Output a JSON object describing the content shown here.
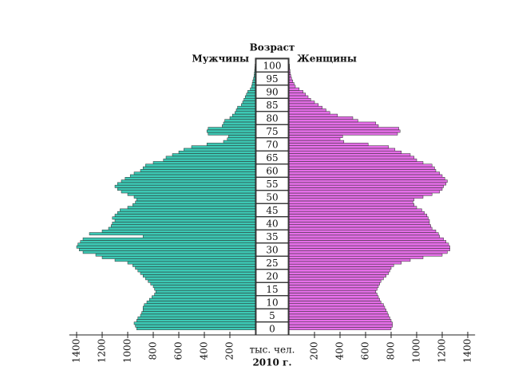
{
  "chart_data": {
    "type": "pyramid",
    "y_label": "Возраст",
    "x_label": "тыс. чел.",
    "annotation": "2010 г.",
    "categories": [
      0,
      null,
      null,
      null,
      null,
      5,
      null,
      null,
      null,
      null,
      10,
      null,
      null,
      null,
      null,
      15,
      null,
      null,
      null,
      null,
      20,
      null,
      null,
      null,
      null,
      25,
      null,
      null,
      null,
      null,
      30,
      null,
      null,
      null,
      null,
      35,
      null,
      null,
      null,
      null,
      40,
      null,
      null,
      null,
      null,
      45,
      null,
      null,
      null,
      null,
      50,
      null,
      null,
      null,
      null,
      55,
      null,
      null,
      null,
      null,
      60,
      null,
      null,
      null,
      null,
      65,
      null,
      null,
      null,
      null,
      70,
      null,
      null,
      null,
      null,
      75,
      null,
      null,
      null,
      null,
      80,
      null,
      null,
      null,
      null,
      85,
      null,
      null,
      null,
      null,
      90,
      null,
      null,
      null,
      null,
      95,
      null,
      null,
      null,
      null,
      100
    ],
    "series": [
      {
        "name": "Мужчины",
        "color": "#3cc8b4",
        "values": [
          930,
          940,
          950,
          930,
          920,
          900,
          890,
          880,
          880,
          870,
          850,
          830,
          810,
          790,
          780,
          790,
          800,
          820,
          840,
          860,
          880,
          900,
          920,
          940,
          960,
          1000,
          1100,
          1200,
          1250,
          1350,
          1380,
          1400,
          1390,
          1370,
          1350,
          880,
          1300,
          1200,
          1150,
          1130,
          1120,
          1100,
          1120,
          1100,
          1080,
          1060,
          1000,
          960,
          940,
          930,
          950,
          1000,
          1050,
          1080,
          1100,
          1080,
          1050,
          1020,
          980,
          950,
          900,
          880,
          860,
          800,
          720,
          700,
          650,
          600,
          560,
          500,
          380,
          250,
          220,
          210,
          370,
          380,
          370,
          260,
          250,
          240,
          200,
          180,
          160,
          150,
          140,
          110,
          100,
          90,
          80,
          70,
          60,
          40,
          30,
          25,
          20,
          15,
          10,
          8,
          6,
          4,
          3
        ]
      },
      {
        "name": "Женщины",
        "color": "#e56ee8",
        "values": [
          800,
          810,
          810,
          800,
          790,
          780,
          770,
          760,
          750,
          740,
          720,
          710,
          700,
          690,
          680,
          690,
          700,
          710,
          720,
          740,
          760,
          780,
          790,
          800,
          820,
          880,
          950,
          1050,
          1200,
          1240,
          1260,
          1260,
          1250,
          1230,
          1210,
          1180,
          1170,
          1150,
          1120,
          1110,
          1100,
          1100,
          1090,
          1080,
          1060,
          1040,
          1000,
          980,
          970,
          980,
          1050,
          1120,
          1180,
          1200,
          1210,
          1230,
          1240,
          1220,
          1200,
          1180,
          1150,
          1140,
          1120,
          1050,
          1000,
          980,
          950,
          880,
          830,
          780,
          620,
          430,
          400,
          420,
          850,
          870,
          860,
          700,
          680,
          540,
          500,
          380,
          320,
          290,
          260,
          230,
          200,
          170,
          150,
          130,
          110,
          80,
          50,
          40,
          30,
          20,
          15,
          10,
          8,
          5,
          4
        ]
      }
    ],
    "xlim": [
      0,
      1420
    ],
    "xticks": [
      200,
      400,
      600,
      800,
      1000,
      1200,
      1400
    ]
  }
}
